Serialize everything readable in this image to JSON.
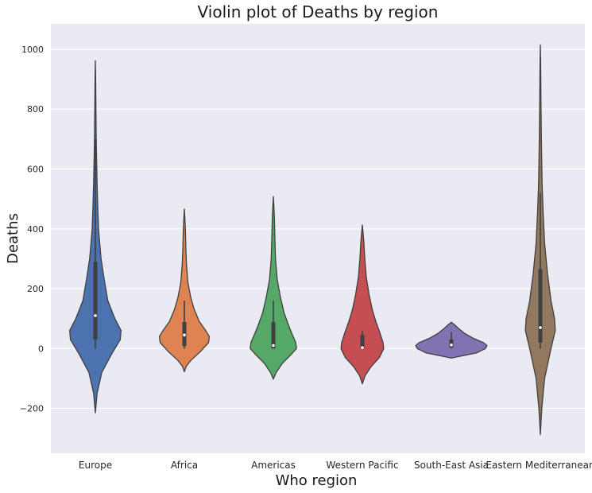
{
  "chart_data": {
    "type": "violin",
    "title": "Violin plot of Deaths by region",
    "xlabel": "Who region",
    "ylabel": "Deaths",
    "ylim": [
      -350,
      1085
    ],
    "yticks": [
      -200,
      0,
      200,
      400,
      600,
      800,
      1000
    ],
    "ytick_labels": [
      "−200",
      "0",
      "200",
      "400",
      "600",
      "800",
      "1000"
    ],
    "grid": true,
    "categories": [
      "Europe",
      "Africa",
      "Americas",
      "Western Pacific",
      "South-East Asia",
      "Eastern Mediterranean"
    ],
    "colors": [
      "#4c72b0",
      "#dd8452",
      "#55a868",
      "#c44e52",
      "#8172b3",
      "#937860"
    ],
    "series": [
      {
        "name": "Europe",
        "box": {
          "q1": 30,
          "median": 110,
          "q3": 290,
          "whisker_low": 0,
          "whisker_high": 700
        },
        "profile": [
          [
            -215,
            0
          ],
          [
            -150,
            0.05
          ],
          [
            -80,
            0.18
          ],
          [
            -20,
            0.45
          ],
          [
            30,
            0.7
          ],
          [
            60,
            0.72
          ],
          [
            100,
            0.55
          ],
          [
            160,
            0.35
          ],
          [
            230,
            0.25
          ],
          [
            300,
            0.16
          ],
          [
            400,
            0.09
          ],
          [
            500,
            0.06
          ],
          [
            600,
            0.04
          ],
          [
            700,
            0.025
          ],
          [
            800,
            0.015
          ],
          [
            900,
            0.01
          ],
          [
            962,
            0
          ]
        ]
      },
      {
        "name": "Africa",
        "box": {
          "q1": 8,
          "median": 45,
          "q3": 88,
          "whisker_low": 0,
          "whisker_high": 160
        },
        "profile": [
          [
            -78,
            0
          ],
          [
            -60,
            0.05
          ],
          [
            -40,
            0.18
          ],
          [
            -10,
            0.45
          ],
          [
            20,
            0.68
          ],
          [
            40,
            0.7
          ],
          [
            60,
            0.6
          ],
          [
            90,
            0.42
          ],
          [
            130,
            0.28
          ],
          [
            170,
            0.18
          ],
          [
            220,
            0.1
          ],
          [
            280,
            0.06
          ],
          [
            340,
            0.04
          ],
          [
            400,
            0.03
          ],
          [
            466,
            0
          ]
        ]
      },
      {
        "name": "Americas",
        "box": {
          "q1": 0,
          "median": 10,
          "q3": 88,
          "whisker_low": 0,
          "whisker_high": 160
        },
        "profile": [
          [
            -102,
            0
          ],
          [
            -80,
            0.08
          ],
          [
            -50,
            0.25
          ],
          [
            -20,
            0.5
          ],
          [
            0,
            0.65
          ],
          [
            20,
            0.63
          ],
          [
            50,
            0.52
          ],
          [
            80,
            0.42
          ],
          [
            120,
            0.3
          ],
          [
            170,
            0.2
          ],
          [
            230,
            0.11
          ],
          [
            300,
            0.06
          ],
          [
            380,
            0.04
          ],
          [
            440,
            0.03
          ],
          [
            508,
            0
          ]
        ]
      },
      {
        "name": "Western Pacific",
        "box": {
          "q1": 0,
          "median": 3,
          "q3": 45,
          "whisker_low": 0,
          "whisker_high": 60
        },
        "profile": [
          [
            -118,
            0
          ],
          [
            -90,
            0.08
          ],
          [
            -60,
            0.25
          ],
          [
            -30,
            0.48
          ],
          [
            0,
            0.6
          ],
          [
            20,
            0.58
          ],
          [
            50,
            0.5
          ],
          [
            90,
            0.38
          ],
          [
            130,
            0.28
          ],
          [
            180,
            0.19
          ],
          [
            240,
            0.11
          ],
          [
            300,
            0.07
          ],
          [
            360,
            0.04
          ],
          [
            413,
            0
          ]
        ]
      },
      {
        "name": "South-East Asia",
        "box": {
          "q1": 3,
          "median": 12,
          "q3": 30,
          "whisker_low": 0,
          "whisker_high": 55
        },
        "profile": [
          [
            -32,
            0
          ],
          [
            -25,
            0.28
          ],
          [
            -15,
            0.7
          ],
          [
            0,
            0.96
          ],
          [
            10,
            1.0
          ],
          [
            20,
            0.9
          ],
          [
            35,
            0.6
          ],
          [
            50,
            0.38
          ],
          [
            65,
            0.22
          ],
          [
            78,
            0.1
          ],
          [
            88,
            0
          ]
        ]
      },
      {
        "name": "Eastern Mediterranean",
        "box": {
          "q1": 20,
          "median": 70,
          "q3": 265,
          "whisker_low": 0,
          "whisker_high": 520
        },
        "profile": [
          [
            -288,
            0
          ],
          [
            -200,
            0.04
          ],
          [
            -100,
            0.12
          ],
          [
            0,
            0.3
          ],
          [
            60,
            0.42
          ],
          [
            100,
            0.4
          ],
          [
            160,
            0.3
          ],
          [
            250,
            0.2
          ],
          [
            350,
            0.12
          ],
          [
            450,
            0.08
          ],
          [
            550,
            0.05
          ],
          [
            650,
            0.035
          ],
          [
            750,
            0.025
          ],
          [
            850,
            0.015
          ],
          [
            950,
            0.008
          ],
          [
            1015,
            0
          ]
        ]
      }
    ]
  }
}
